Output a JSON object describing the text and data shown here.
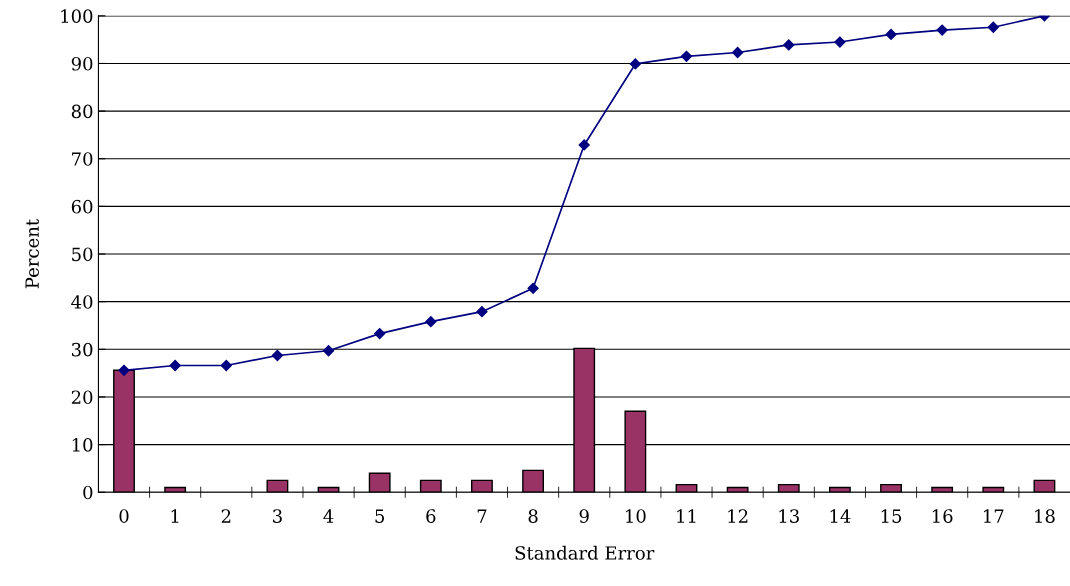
{
  "chart_data": {
    "type": "bar",
    "xlabel": "Standard Error",
    "ylabel": "Percent",
    "categories": [
      "0",
      "1",
      "2",
      "3",
      "4",
      "5",
      "6",
      "7",
      "8",
      "9",
      "10",
      "11",
      "12",
      "13",
      "14",
      "15",
      "16",
      "17",
      "18"
    ],
    "series": [
      {
        "color": "#993366",
        "values": [
          25.6,
          1,
          0,
          2.5,
          1,
          4,
          2.5,
          2.5,
          4.6,
          30.2,
          17,
          1.6,
          1,
          1.6,
          1,
          1.6,
          1,
          1,
          2.5
        ]
      },
      {
        "type": "line",
        "color": "#000080",
        "marker": "diamond",
        "values": [
          25.6,
          26.6,
          26.6,
          28.7,
          29.7,
          33.3,
          35.8,
          37.9,
          42.8,
          72.9,
          89.9,
          91.5,
          92.3,
          93.9,
          94.5,
          96.1,
          97.0,
          97.6,
          100
        ]
      }
    ],
    "ylim": [
      0,
      100
    ],
    "yticks": [
      0,
      10,
      20,
      30,
      40,
      50,
      60,
      70,
      80,
      90,
      100
    ],
    "grid": "y",
    "legend": false
  }
}
